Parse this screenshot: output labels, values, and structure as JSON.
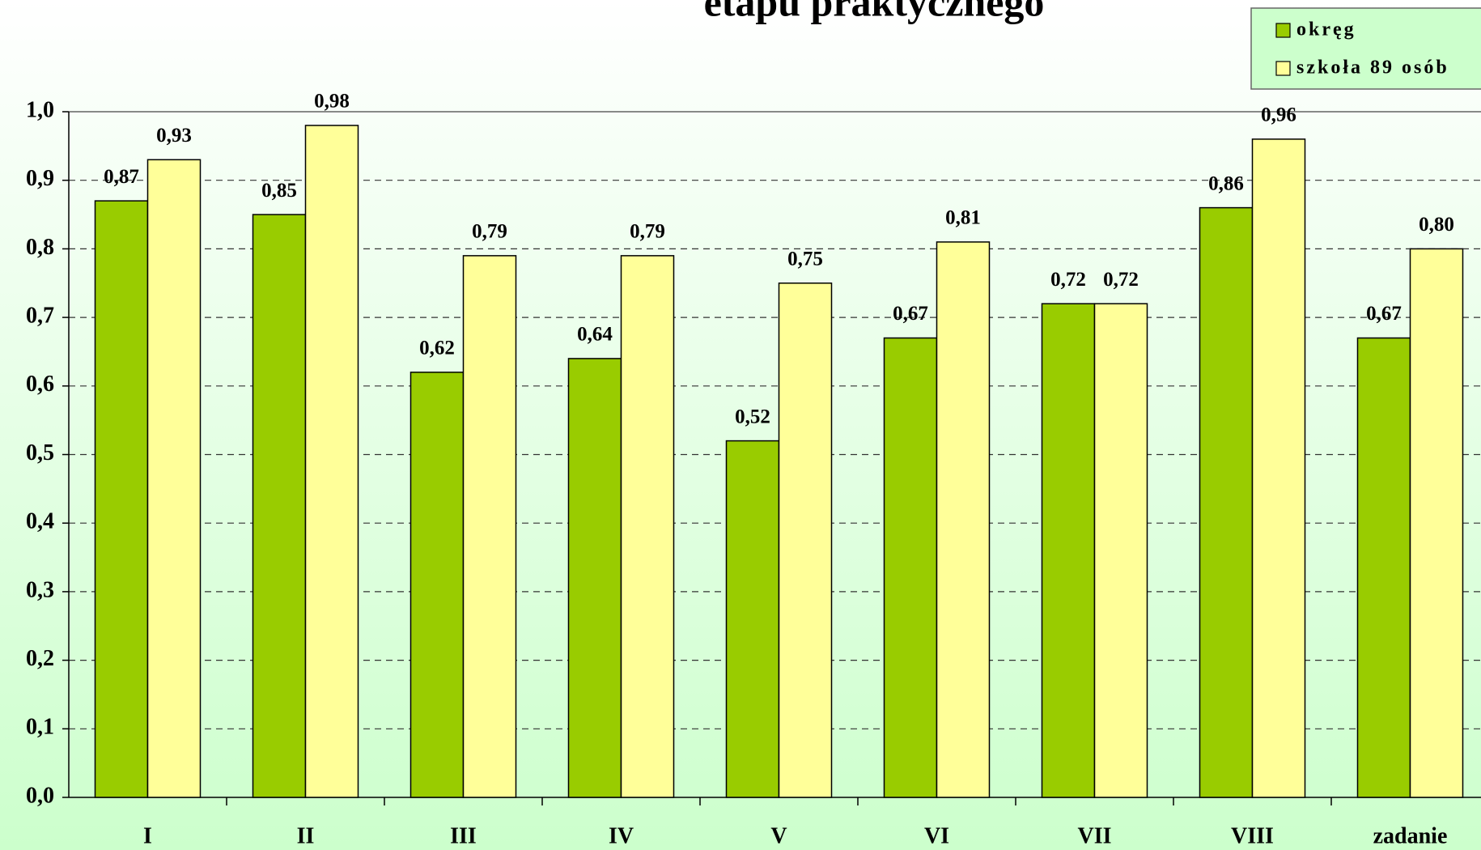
{
  "chart_data": {
    "type": "bar",
    "title": "etapu praktycznego",
    "categories": [
      "I",
      "II",
      "III",
      "IV",
      "V",
      "VI",
      "VII",
      "VIII",
      "zadanie"
    ],
    "series": [
      {
        "name": "okręg",
        "color": "#99cc00",
        "values": [
          0.87,
          0.85,
          0.62,
          0.64,
          0.52,
          0.67,
          0.72,
          0.86,
          0.67
        ],
        "value_labels": [
          "0,87",
          "0,85",
          "0,62",
          "0,64",
          "0,52",
          "0,67",
          "0,72",
          "0,86",
          "0,67"
        ]
      },
      {
        "name": "szkoła 89 osób",
        "color": "#ffff99",
        "values": [
          0.93,
          0.98,
          0.79,
          0.79,
          0.75,
          0.81,
          0.72,
          0.96,
          0.8
        ],
        "value_labels": [
          "0,93",
          "0,98",
          "0,79",
          "0,79",
          "0,75",
          "0,81",
          "0,72",
          "0,96",
          "0,80"
        ]
      }
    ],
    "ylim": [
      0,
      1
    ],
    "yticks": [
      {
        "value": 0,
        "label": "0,0"
      },
      {
        "value": 0.1,
        "label": "0,1"
      },
      {
        "value": 0.2,
        "label": "0,2"
      },
      {
        "value": 0.3,
        "label": "0,3"
      },
      {
        "value": 0.4,
        "label": "0,4"
      },
      {
        "value": 0.5,
        "label": "0,5"
      },
      {
        "value": 0.6,
        "label": "0,6"
      },
      {
        "value": 0.7,
        "label": "0,7"
      },
      {
        "value": 0.8,
        "label": "0,8"
      },
      {
        "value": 0.9,
        "label": "0,9"
      },
      {
        "value": 1,
        "label": "1,0"
      }
    ],
    "grid": true,
    "legend": "top-right"
  }
}
